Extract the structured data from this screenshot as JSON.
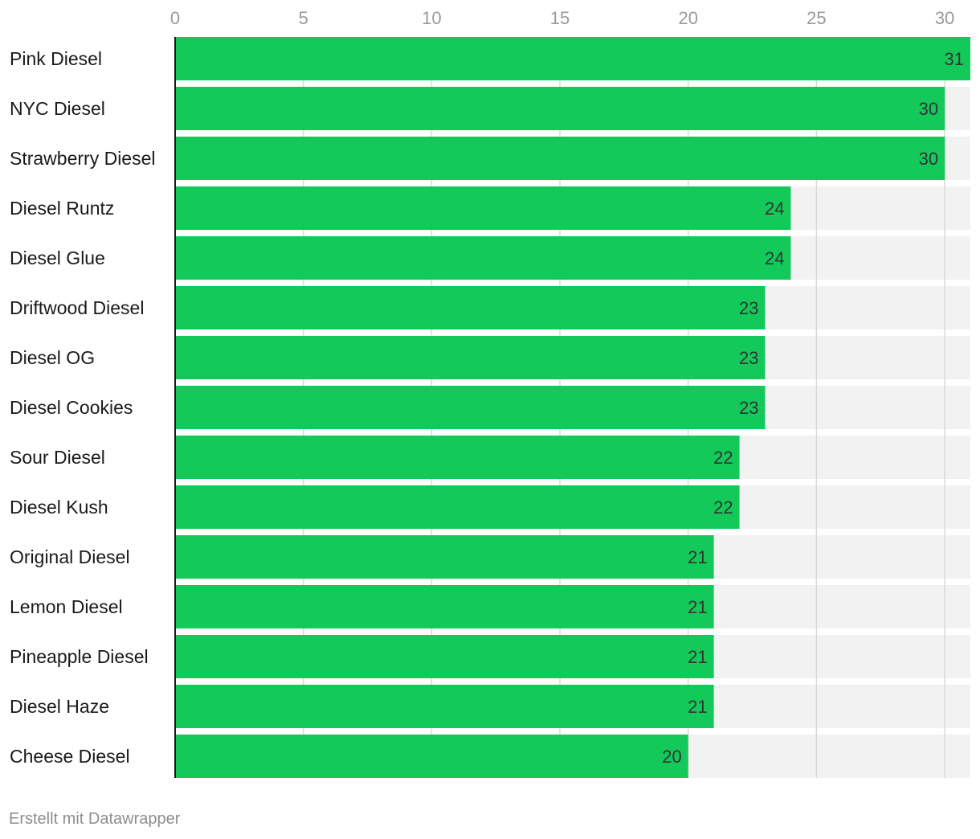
{
  "chart_data": {
    "type": "bar",
    "orientation": "horizontal",
    "title": "",
    "xlabel": "",
    "ylabel": "",
    "xlim": [
      0,
      31
    ],
    "ticks": [
      0,
      5,
      10,
      15,
      20,
      25,
      30
    ],
    "grid": true,
    "categories": [
      "Pink Diesel",
      "NYC Diesel",
      "Strawberry Diesel",
      "Diesel Runtz",
      "Diesel Glue",
      "Driftwood Diesel",
      "Diesel OG",
      "Diesel Cookies",
      "Sour Diesel",
      "Diesel Kush",
      "Original Diesel",
      "Lemon Diesel",
      "Pineapple Diesel",
      "Diesel Haze",
      "Cheese Diesel"
    ],
    "values": [
      31,
      30,
      30,
      24,
      24,
      23,
      23,
      23,
      22,
      22,
      21,
      21,
      21,
      21,
      20
    ],
    "colors": {
      "bar": "#13c95a",
      "track": "#f2f2f2",
      "grid": "#d9d9d9",
      "axis": "#1a1a1a"
    }
  },
  "footer": {
    "credit": "Erstellt mit Datawrapper"
  }
}
